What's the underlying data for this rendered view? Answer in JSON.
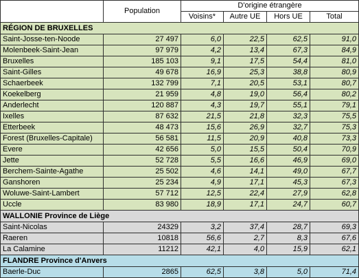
{
  "header": {
    "population": "Population",
    "origin_group": "D'origine étrangère",
    "sub": [
      "Voisins*",
      "Autre UE",
      "Hors UE",
      "Total"
    ]
  },
  "colors": {
    "bruxelles": "#d7e4bd",
    "wallonie": "#d9d9d9",
    "flandre": "#b7dde8"
  },
  "sections": [
    {
      "title": "RÉGION DE BRUXELLES",
      "rows": [
        {
          "name": "Saint-Josse-ten-Noode",
          "population": "27 497",
          "voisins": "6,0",
          "autre_ue": "22,5",
          "hors_ue": "62,5",
          "total": "91,0"
        },
        {
          "name": "Molenbeek-Saint-Jean",
          "population": "97 979",
          "voisins": "4,2",
          "autre_ue": "13,4",
          "hors_ue": "67,3",
          "total": "84,9"
        },
        {
          "name": "Bruxelles",
          "population": "185 103",
          "voisins": "9,1",
          "autre_ue": "17,5",
          "hors_ue": "54,4",
          "total": "81,0"
        },
        {
          "name": "Saint-Gilles",
          "population": "49 678",
          "voisins": "16,9",
          "autre_ue": "25,3",
          "hors_ue": "38,8",
          "total": "80,9"
        },
        {
          "name": "Schaerbeek",
          "population": "132 799",
          "voisins": "7,1",
          "autre_ue": "20,5",
          "hors_ue": "53,1",
          "total": "80,7"
        },
        {
          "name": "Koekelberg",
          "population": "21 959",
          "voisins": "4,8",
          "autre_ue": "19,0",
          "hors_ue": "56,4",
          "total": "80,2"
        },
        {
          "name": "Anderlecht",
          "population": "120 887",
          "voisins": "4,3",
          "autre_ue": "19,7",
          "hors_ue": "55,1",
          "total": "79,1"
        },
        {
          "name": "Ixelles",
          "population": "87 632",
          "voisins": "21,5",
          "autre_ue": "21,8",
          "hors_ue": "32,3",
          "total": "75,5"
        },
        {
          "name": "Etterbeek",
          "population": "48 473",
          "voisins": "15,6",
          "autre_ue": "26,9",
          "hors_ue": "32,7",
          "total": "75,3"
        },
        {
          "name": "Forest (Bruxelles-Capitale)",
          "population": "56 581",
          "voisins": "11,5",
          "autre_ue": "20,9",
          "hors_ue": "40,8",
          "total": "73,3"
        },
        {
          "name": "Evere",
          "population": "42 656",
          "voisins": "5,0",
          "autre_ue": "15,5",
          "hors_ue": "50,4",
          "total": "70,9"
        },
        {
          "name": "Jette",
          "population": "52 728",
          "voisins": "5,5",
          "autre_ue": "16,6",
          "hors_ue": "46,9",
          "total": "69,0"
        },
        {
          "name": "Berchem-Sainte-Agathe",
          "population": "25 502",
          "voisins": "4,6",
          "autre_ue": "14,1",
          "hors_ue": "49,0",
          "total": "67,7"
        },
        {
          "name": "Ganshoren",
          "population": "25 234",
          "voisins": "4,9",
          "autre_ue": "17,1",
          "hors_ue": "45,3",
          "total": "67,3"
        },
        {
          "name": "Woluwe-Saint-Lambert",
          "population": "57 712",
          "voisins": "12,5",
          "autre_ue": "22,4",
          "hors_ue": "27,9",
          "total": "62,8"
        },
        {
          "name": "Uccle",
          "population": "83 980",
          "voisins": "18,9",
          "autre_ue": "17,1",
          "hors_ue": "24,7",
          "total": "60,7"
        }
      ]
    },
    {
      "title": "WALLONIE Province de Liège",
      "rows": [
        {
          "name": "Saint-Nicolas",
          "population": "24329",
          "voisins": "3,2",
          "autre_ue": "37,4",
          "hors_ue": "28,7",
          "total": "69,3"
        },
        {
          "name": "Raeren",
          "population": "10818",
          "voisins": "56,6",
          "autre_ue": "2,7",
          "hors_ue": "8,3",
          "total": "67,6"
        },
        {
          "name": "La Calamine",
          "population": "11212",
          "voisins": "42,1",
          "autre_ue": "4,0",
          "hors_ue": "15,9",
          "total": "62,1"
        }
      ]
    },
    {
      "title": "FLANDRE Province d'Anvers",
      "rows": [
        {
          "name": "Baerle-Duc",
          "population": "2865",
          "voisins": "62,5",
          "autre_ue": "3,8",
          "hors_ue": "5,0",
          "total": "71,4"
        }
      ]
    }
  ]
}
